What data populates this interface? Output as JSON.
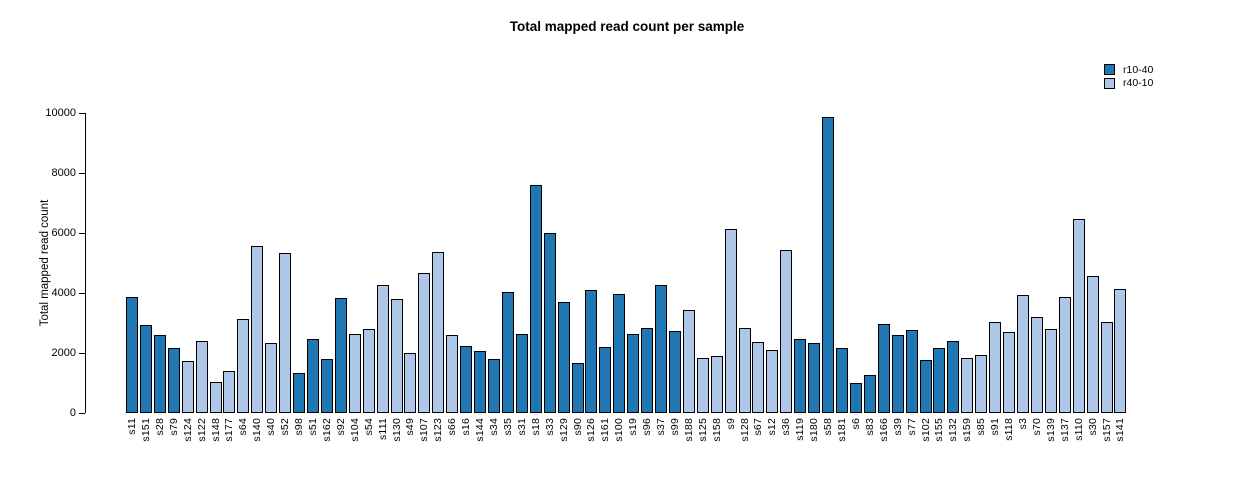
{
  "chart_data": {
    "type": "bar",
    "title": "Total mapped read count per sample",
    "xlabel": "",
    "ylabel": "Total mapped read count",
    "ylim": [
      0,
      10000
    ],
    "yticks": [
      0,
      2000,
      4000,
      6000,
      8000,
      10000
    ],
    "grid": false,
    "legend_position": "top-right",
    "bar_border_color": "#000000",
    "series": [
      {
        "name": "r10-40",
        "color": "#2176b4"
      },
      {
        "name": "r40-10",
        "color": "#aec7e8"
      }
    ],
    "samples": [
      {
        "label": "s11",
        "value": 3870,
        "series": "r10-40"
      },
      {
        "label": "s151",
        "value": 2950,
        "series": "r10-40"
      },
      {
        "label": "s28",
        "value": 2610,
        "series": "r10-40"
      },
      {
        "label": "s79",
        "value": 2160,
        "series": "r10-40"
      },
      {
        "label": "s124",
        "value": 1720,
        "series": "r40-10"
      },
      {
        "label": "s122",
        "value": 2410,
        "series": "r40-10"
      },
      {
        "label": "s148",
        "value": 1050,
        "series": "r40-10"
      },
      {
        "label": "s177",
        "value": 1400,
        "series": "r40-10"
      },
      {
        "label": "s64",
        "value": 3130,
        "series": "r40-10"
      },
      {
        "label": "s140",
        "value": 5560,
        "series": "r40-10"
      },
      {
        "label": "s40",
        "value": 2330,
        "series": "r40-10"
      },
      {
        "label": "s52",
        "value": 5320,
        "series": "r40-10"
      },
      {
        "label": "s98",
        "value": 1350,
        "series": "r10-40"
      },
      {
        "label": "s51",
        "value": 2460,
        "series": "r10-40"
      },
      {
        "label": "s162",
        "value": 1790,
        "series": "r10-40"
      },
      {
        "label": "s92",
        "value": 3840,
        "series": "r10-40"
      },
      {
        "label": "s104",
        "value": 2620,
        "series": "r40-10"
      },
      {
        "label": "s54",
        "value": 2810,
        "series": "r40-10"
      },
      {
        "label": "s111",
        "value": 4260,
        "series": "r40-10"
      },
      {
        "label": "s130",
        "value": 3790,
        "series": "r40-10"
      },
      {
        "label": "s49",
        "value": 2000,
        "series": "r40-10"
      },
      {
        "label": "s107",
        "value": 4660,
        "series": "r40-10"
      },
      {
        "label": "s123",
        "value": 5360,
        "series": "r40-10"
      },
      {
        "label": "s66",
        "value": 2610,
        "series": "r40-10"
      },
      {
        "label": "s16",
        "value": 2240,
        "series": "r10-40"
      },
      {
        "label": "s144",
        "value": 2080,
        "series": "r10-40"
      },
      {
        "label": "s34",
        "value": 1810,
        "series": "r10-40"
      },
      {
        "label": "s35",
        "value": 4050,
        "series": "r10-40"
      },
      {
        "label": "s31",
        "value": 2650,
        "series": "r10-40"
      },
      {
        "label": "s18",
        "value": 7590,
        "series": "r10-40"
      },
      {
        "label": "s33",
        "value": 5990,
        "series": "r10-40"
      },
      {
        "label": "s129",
        "value": 3710,
        "series": "r10-40"
      },
      {
        "label": "s90",
        "value": 1680,
        "series": "r10-40"
      },
      {
        "label": "s126",
        "value": 4100,
        "series": "r10-40"
      },
      {
        "label": "s161",
        "value": 2210,
        "series": "r10-40"
      },
      {
        "label": "s100",
        "value": 3960,
        "series": "r10-40"
      },
      {
        "label": "s19",
        "value": 2630,
        "series": "r10-40"
      },
      {
        "label": "s96",
        "value": 2830,
        "series": "r10-40"
      },
      {
        "label": "s37",
        "value": 4270,
        "series": "r10-40"
      },
      {
        "label": "s99",
        "value": 2730,
        "series": "r10-40"
      },
      {
        "label": "s188",
        "value": 3430,
        "series": "r40-10"
      },
      {
        "label": "s125",
        "value": 1840,
        "series": "r40-10"
      },
      {
        "label": "s158",
        "value": 1910,
        "series": "r40-10"
      },
      {
        "label": "s9",
        "value": 6120,
        "series": "r40-10"
      },
      {
        "label": "s128",
        "value": 2830,
        "series": "r40-10"
      },
      {
        "label": "s67",
        "value": 2370,
        "series": "r40-10"
      },
      {
        "label": "s12",
        "value": 2100,
        "series": "r40-10"
      },
      {
        "label": "s36",
        "value": 5450,
        "series": "r40-10"
      },
      {
        "label": "s119",
        "value": 2470,
        "series": "r10-40"
      },
      {
        "label": "s180",
        "value": 2320,
        "series": "r10-40"
      },
      {
        "label": "s58",
        "value": 9880,
        "series": "r10-40"
      },
      {
        "label": "s181",
        "value": 2160,
        "series": "r10-40"
      },
      {
        "label": "s6",
        "value": 990,
        "series": "r10-40"
      },
      {
        "label": "s83",
        "value": 1270,
        "series": "r10-40"
      },
      {
        "label": "s166",
        "value": 2970,
        "series": "r10-40"
      },
      {
        "label": "s39",
        "value": 2600,
        "series": "r10-40"
      },
      {
        "label": "s77",
        "value": 2770,
        "series": "r10-40"
      },
      {
        "label": "s102",
        "value": 1770,
        "series": "r10-40"
      },
      {
        "label": "s155",
        "value": 2160,
        "series": "r10-40"
      },
      {
        "label": "s132",
        "value": 2400,
        "series": "r10-40"
      },
      {
        "label": "s159",
        "value": 1830,
        "series": "r40-10"
      },
      {
        "label": "s85",
        "value": 1930,
        "series": "r40-10"
      },
      {
        "label": "s91",
        "value": 3030,
        "series": "r40-10"
      },
      {
        "label": "s118",
        "value": 2690,
        "series": "r40-10"
      },
      {
        "label": "s3",
        "value": 3920,
        "series": "r40-10"
      },
      {
        "label": "s70",
        "value": 3210,
        "series": "r40-10"
      },
      {
        "label": "s139",
        "value": 2800,
        "series": "r40-10"
      },
      {
        "label": "s137",
        "value": 3880,
        "series": "r40-10"
      },
      {
        "label": "s110",
        "value": 6460,
        "series": "r40-10"
      },
      {
        "label": "s30",
        "value": 4580,
        "series": "r40-10"
      },
      {
        "label": "s157",
        "value": 3040,
        "series": "r40-10"
      },
      {
        "label": "s141",
        "value": 4120,
        "series": "r40-10"
      }
    ]
  }
}
